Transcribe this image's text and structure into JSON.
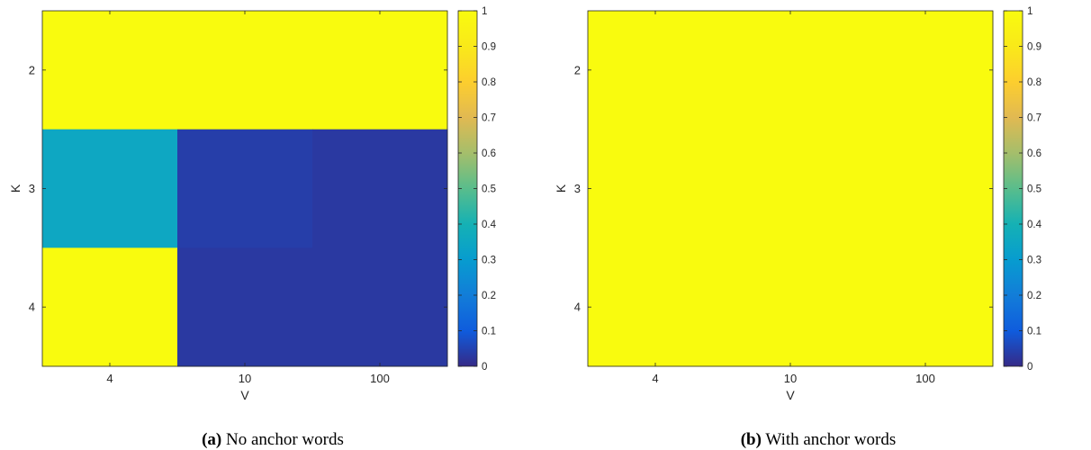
{
  "chart_data": [
    {
      "type": "heatmap",
      "caption_tag": "(a)",
      "caption_text": "No anchor words",
      "xlabel": "V",
      "ylabel": "K",
      "x": [
        "4",
        "10",
        "100"
      ],
      "y": [
        "2",
        "3",
        "4"
      ],
      "values": [
        [
          1.0,
          1.0,
          1.0
        ],
        [
          0.35,
          0.04,
          0.03
        ],
        [
          1.0,
          0.03,
          0.03
        ]
      ],
      "colorbar": {
        "range": [
          0,
          1
        ],
        "ticks": [
          "0",
          "0.1",
          "0.2",
          "0.3",
          "0.4",
          "0.5",
          "0.6",
          "0.7",
          "0.8",
          "0.9",
          "1"
        ]
      },
      "colormap": "parula"
    },
    {
      "type": "heatmap",
      "caption_tag": "(b)",
      "caption_text": "With anchor words",
      "xlabel": "V",
      "ylabel": "K",
      "x": [
        "4",
        "10",
        "100"
      ],
      "y": [
        "2",
        "3",
        "4"
      ],
      "values": [
        [
          1.0,
          1.0,
          1.0
        ],
        [
          1.0,
          1.0,
          1.0
        ],
        [
          1.0,
          1.0,
          1.0
        ]
      ],
      "colorbar": {
        "range": [
          0,
          1
        ],
        "ticks": [
          "0",
          "0.1",
          "0.2",
          "0.3",
          "0.4",
          "0.5",
          "0.6",
          "0.7",
          "0.8",
          "0.9",
          "1"
        ]
      },
      "colormap": "parula"
    }
  ]
}
